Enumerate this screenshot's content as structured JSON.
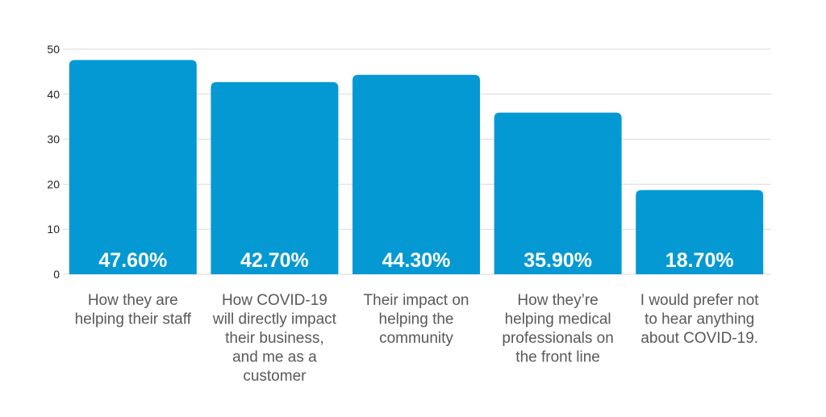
{
  "chart_data": {
    "type": "bar",
    "categories": [
      [
        "How they are",
        "helping their staff"
      ],
      [
        "How COVID-19",
        "will directly impact",
        "their business,",
        "and me as a",
        "customer"
      ],
      [
        "Their impact on",
        "helping the",
        "community"
      ],
      [
        "How they’re",
        "helping medical",
        "professionals on",
        "the front line"
      ],
      [
        "I would prefer not",
        "to hear anything",
        "about COVID-19."
      ]
    ],
    "values": [
      47.6,
      42.7,
      44.3,
      35.9,
      18.7
    ],
    "data_labels": [
      "47.60%",
      "42.70%",
      "44.30%",
      "35.90%",
      "18.70%"
    ],
    "y_ticks": [
      0,
      10,
      20,
      30,
      40,
      50
    ],
    "ylim": [
      0,
      50
    ],
    "grid": true,
    "legend": "none",
    "colors": {
      "bar": "#0599d3",
      "grid": "#d9d9d9",
      "tick_text": "#222222",
      "category_text": "#595959",
      "data_label_text": "#ffffff"
    }
  }
}
